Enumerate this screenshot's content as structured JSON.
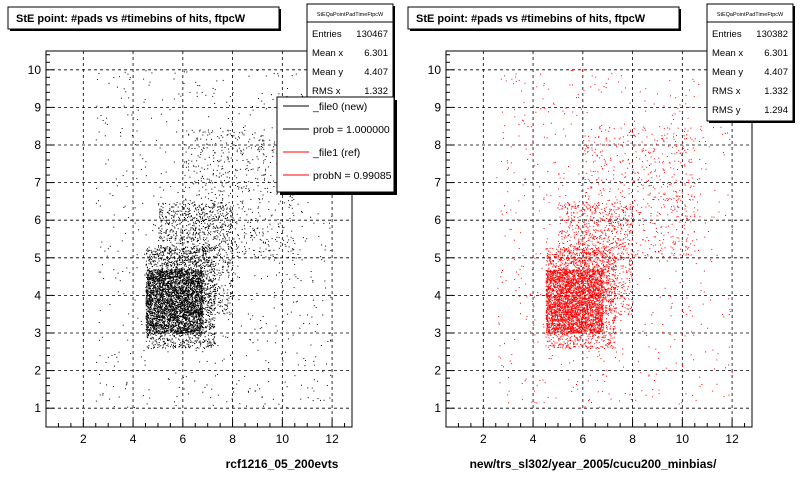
{
  "footer_stamp": "",
  "chart_data": [
    {
      "type": "scatter",
      "title": "StE point: #pads vs #timebins of hits, ftpcW",
      "xlabel": "rcf1216_05_200evts",
      "ylabel": "",
      "xlim": [
        0.5,
        12.8
      ],
      "ylim": [
        0.5,
        10.5
      ],
      "xticks": [
        "2",
        "4",
        "6",
        "8",
        "10",
        "12"
      ],
      "yticks": [
        "1",
        "2",
        "3",
        "4",
        "5",
        "6",
        "7",
        "8",
        "9",
        "10"
      ],
      "grid": true,
      "marker_color": "#000000",
      "stats": {
        "name": "StEQaPointPadTimeFtpcW",
        "rows": [
          {
            "label": "Entries",
            "value": "130467"
          },
          {
            "label": "Mean x",
            "value": "6.301"
          },
          {
            "label": "Mean y",
            "value": "4.407"
          },
          {
            "label": "RMS x",
            "value": "1.332"
          }
        ]
      },
      "legend": {
        "placement": "top-right",
        "entries": [
          {
            "label": "_file0 (new)",
            "color": "#000000"
          },
          {
            "label": "prob = 1.000000",
            "color": "#000000"
          },
          {
            "label": "_file1 (ref)",
            "color": "#ff0000"
          },
          {
            "label": "probN = 0.99085",
            "color": "#ff0000"
          }
        ]
      },
      "density_regions": [
        {
          "x": [
            4.5,
            6.8
          ],
          "y": [
            3.0,
            4.7
          ],
          "weight": 2600
        },
        {
          "x": [
            4.5,
            7.3
          ],
          "y": [
            2.6,
            5.3
          ],
          "weight": 1600
        },
        {
          "x": [
            5.0,
            8.0
          ],
          "y": [
            3.5,
            6.5
          ],
          "weight": 1100
        },
        {
          "x": [
            6.0,
            10.5
          ],
          "y": [
            5.0,
            8.5
          ],
          "weight": 600
        },
        {
          "x": [
            2.5,
            12.0
          ],
          "y": [
            1.0,
            10.0
          ],
          "weight": 700
        }
      ]
    },
    {
      "type": "scatter",
      "title": "StE point: #pads vs #timebins of hits, ftpcW",
      "xlabel": "new/trs_sl302/year_2005/cucu200_minbias/",
      "ylabel": "",
      "xlim": [
        0.5,
        12.8
      ],
      "ylim": [
        0.5,
        10.5
      ],
      "xticks": [
        "2",
        "4",
        "6",
        "8",
        "10",
        "12"
      ],
      "yticks": [
        "1",
        "2",
        "3",
        "4",
        "5",
        "6",
        "7",
        "8",
        "9",
        "10"
      ],
      "grid": true,
      "marker_color": "#ff0000",
      "stats": {
        "name": "StEQaPointPadTimeFtpcW",
        "rows": [
          {
            "label": "Entries",
            "value": "130382"
          },
          {
            "label": "Mean x",
            "value": "6.301"
          },
          {
            "label": "Mean y",
            "value": "4.407"
          },
          {
            "label": "RMS x",
            "value": "1.332"
          },
          {
            "label": "RMS y",
            "value": "1.294"
          }
        ]
      },
      "legend": null,
      "density_regions": [
        {
          "x": [
            4.5,
            6.8
          ],
          "y": [
            3.0,
            4.7
          ],
          "weight": 2400
        },
        {
          "x": [
            4.5,
            7.3
          ],
          "y": [
            2.6,
            5.3
          ],
          "weight": 1500
        },
        {
          "x": [
            5.0,
            8.0
          ],
          "y": [
            3.5,
            6.5
          ],
          "weight": 1000
        },
        {
          "x": [
            6.0,
            10.5
          ],
          "y": [
            5.0,
            8.5
          ],
          "weight": 550
        },
        {
          "x": [
            2.5,
            12.0
          ],
          "y": [
            1.0,
            10.0
          ],
          "weight": 650
        }
      ]
    }
  ]
}
